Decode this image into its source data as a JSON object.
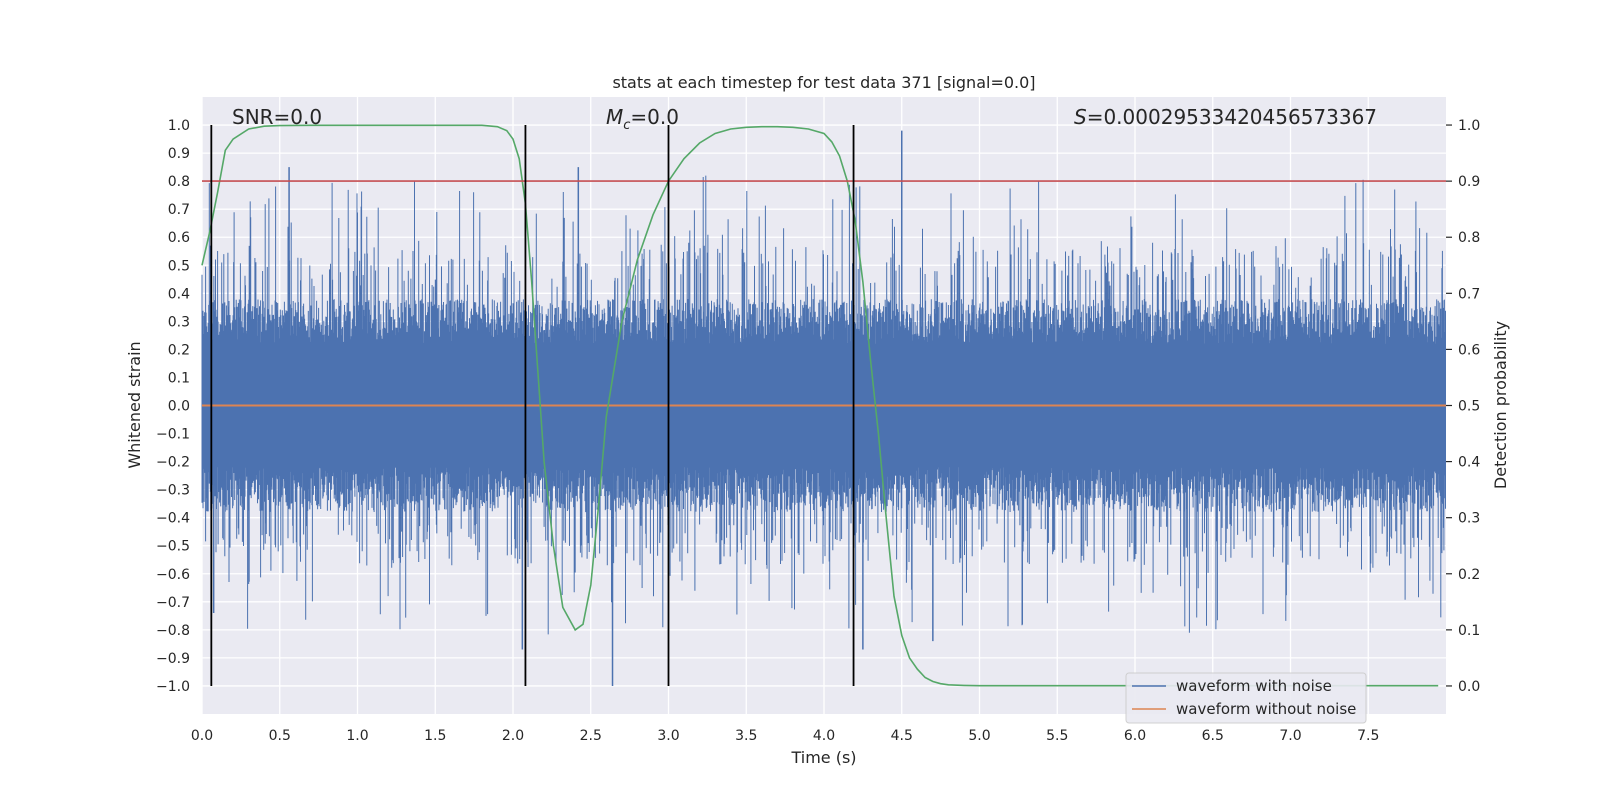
{
  "chart_data": {
    "type": "line",
    "title": "stats at each timestep for test data 371 [signal=0.0]",
    "xlabel": "Time (s)",
    "ylabel": "Whitened strain",
    "y2label": "Detection probability",
    "xlim": [
      0.0,
      8.0
    ],
    "ylim": [
      -1.1,
      1.1
    ],
    "y2lim": [
      -0.05,
      1.05
    ],
    "xticks": [
      "0.0",
      "0.5",
      "1.0",
      "1.5",
      "2.0",
      "2.5",
      "3.0",
      "3.5",
      "4.0",
      "4.5",
      "5.0",
      "5.5",
      "6.0",
      "6.5",
      "7.0",
      "7.5"
    ],
    "xtick_values": [
      0.0,
      0.5,
      1.0,
      1.5,
      2.0,
      2.5,
      3.0,
      3.5,
      4.0,
      4.5,
      5.0,
      5.5,
      6.0,
      6.5,
      7.0,
      7.5
    ],
    "yticks": [
      "1.0",
      "0.9",
      "0.8",
      "0.7",
      "0.6",
      "0.5",
      "0.4",
      "0.3",
      "0.2",
      "0.1",
      "0.0",
      "−0.1",
      "−0.2",
      "−0.3",
      "−0.4",
      "−0.5",
      "−0.6",
      "−0.7",
      "−0.8",
      "−0.9",
      "−1.0"
    ],
    "ytick_values": [
      1.0,
      0.9,
      0.8,
      0.7,
      0.6,
      0.5,
      0.4,
      0.3,
      0.2,
      0.1,
      0.0,
      -0.1,
      -0.2,
      -0.3,
      -0.4,
      -0.5,
      -0.6,
      -0.7,
      -0.8,
      -0.9,
      -1.0
    ],
    "y2ticks": [
      "1.0",
      "0.9",
      "0.8",
      "0.7",
      "0.6",
      "0.5",
      "0.4",
      "0.3",
      "0.2",
      "0.1",
      "0.0"
    ],
    "y2tick_values": [
      1.0,
      0.9,
      0.8,
      0.7,
      0.6,
      0.5,
      0.4,
      0.3,
      0.2,
      0.1,
      0.0
    ],
    "annotations": {
      "snr": "SNR=0.0",
      "mc_symbol": "M",
      "mc_sub": "c",
      "mc_value": "=0.0",
      "s_symbol": "S",
      "s_value": "=0.00029533420456573367"
    },
    "series": [
      {
        "name": "waveform with noise",
        "color": "#4c72b0",
        "description": "whitened noisy strain, roughly within -0.5..0.5 with spikes to about ±1.0",
        "spikes": [
          {
            "x": 0.055,
            "y": 0.57
          },
          {
            "x": 0.075,
            "y": -0.74
          },
          {
            "x": 0.56,
            "y": 0.85
          },
          {
            "x": 2.06,
            "y": -0.87
          },
          {
            "x": 2.42,
            "y": 0.85
          },
          {
            "x": 2.64,
            "y": -1.0
          },
          {
            "x": 4.25,
            "y": -0.87
          },
          {
            "x": 4.5,
            "y": 0.98
          },
          {
            "x": 4.7,
            "y": -0.84
          }
        ]
      },
      {
        "name": "waveform without noise",
        "color": "#dd8452",
        "x": [
          0.0,
          8.0
        ],
        "y": [
          0.0,
          0.0
        ]
      },
      {
        "name": "detection probability",
        "color": "#55a868",
        "axis": "right",
        "x": [
          0.0,
          0.05,
          0.1,
          0.15,
          0.2,
          0.3,
          0.4,
          0.5,
          0.7,
          1.0,
          1.5,
          1.8,
          1.9,
          1.96,
          2.0,
          2.04,
          2.08,
          2.12,
          2.16,
          2.2,
          2.26,
          2.32,
          2.4,
          2.45,
          2.5,
          2.55,
          2.6,
          2.7,
          2.8,
          2.9,
          3.0,
          3.1,
          3.2,
          3.3,
          3.4,
          3.5,
          3.6,
          3.7,
          3.8,
          3.9,
          4.0,
          4.05,
          4.1,
          4.15,
          4.2,
          4.25,
          4.3,
          4.35,
          4.4,
          4.45,
          4.5,
          4.55,
          4.6,
          4.65,
          4.7,
          4.75,
          4.8,
          4.9,
          5.0,
          6.0,
          7.0,
          7.95
        ],
        "y": [
          0.75,
          0.81,
          0.88,
          0.955,
          0.975,
          0.993,
          0.998,
          0.999,
          0.9995,
          0.9995,
          0.9995,
          0.9995,
          0.997,
          0.99,
          0.975,
          0.94,
          0.86,
          0.72,
          0.56,
          0.4,
          0.25,
          0.14,
          0.1,
          0.11,
          0.18,
          0.32,
          0.48,
          0.65,
          0.76,
          0.84,
          0.9,
          0.94,
          0.968,
          0.985,
          0.993,
          0.996,
          0.997,
          0.997,
          0.996,
          0.993,
          0.985,
          0.97,
          0.945,
          0.9,
          0.83,
          0.72,
          0.58,
          0.45,
          0.3,
          0.16,
          0.09,
          0.05,
          0.03,
          0.015,
          0.008,
          0.004,
          0.002,
          0.001,
          0.0005,
          0.0005,
          0.0005,
          0.0005
        ]
      },
      {
        "name": "detection threshold",
        "color": "#c44e52",
        "axis": "right",
        "x": [
          0.0,
          8.0
        ],
        "y": [
          0.9,
          0.9
        ]
      }
    ],
    "vertical_lines": {
      "color": "#000000",
      "x": [
        0.06,
        2.08,
        3.0,
        4.19
      ],
      "y_range": [
        -1.0,
        1.0
      ]
    },
    "legend": {
      "placement": "bottom-right",
      "entries": [
        {
          "label": "waveform with noise",
          "color": "#4c72b0"
        },
        {
          "label": "waveform without noise",
          "color": "#dd8452"
        }
      ]
    },
    "grid": true,
    "style": {
      "background": "#eaeaf2",
      "grid_color": "#ffffff"
    }
  }
}
